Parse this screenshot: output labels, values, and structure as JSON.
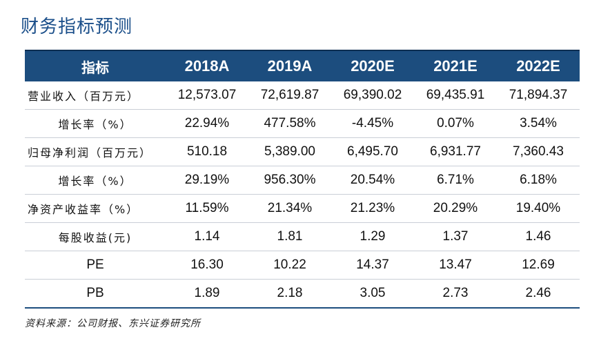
{
  "title": "财务指标预测",
  "table": {
    "header": [
      "指标",
      "2018A",
      "2019A",
      "2020E",
      "2021E",
      "2022E"
    ],
    "rows": [
      {
        "label": "营业收入（百万元）",
        "values": [
          "12,573.07",
          "72,619.87",
          "69,390.02",
          "69,435.91",
          "71,894.37"
        ]
      },
      {
        "label": "增长率（%）",
        "values": [
          "22.94%",
          "477.58%",
          "-4.45%",
          "0.07%",
          "3.54%"
        ]
      },
      {
        "label": "归母净利润（百万元）",
        "values": [
          "510.18",
          "5,389.00",
          "6,495.70",
          "6,931.77",
          "7,360.43"
        ]
      },
      {
        "label": "增长率（%）",
        "values": [
          "29.19%",
          "956.30%",
          "20.54%",
          "6.71%",
          "6.18%"
        ]
      },
      {
        "label": "净资产收益率（%）",
        "values": [
          "11.59%",
          "21.34%",
          "21.23%",
          "20.29%",
          "19.40%"
        ]
      },
      {
        "label": "每股收益(元)",
        "values": [
          "1.14",
          "1.81",
          "1.29",
          "1.37",
          "1.46"
        ]
      },
      {
        "label": "PE",
        "values": [
          "16.30",
          "10.22",
          "14.37",
          "13.47",
          "12.69"
        ]
      },
      {
        "label": "PB",
        "values": [
          "1.89",
          "2.18",
          "3.05",
          "2.73",
          "2.46"
        ]
      }
    ]
  },
  "source": "资料来源：公司财报、东兴证券研究所",
  "colors": {
    "header_bg": "#1c4d7e",
    "title": "#1b4f8a"
  }
}
